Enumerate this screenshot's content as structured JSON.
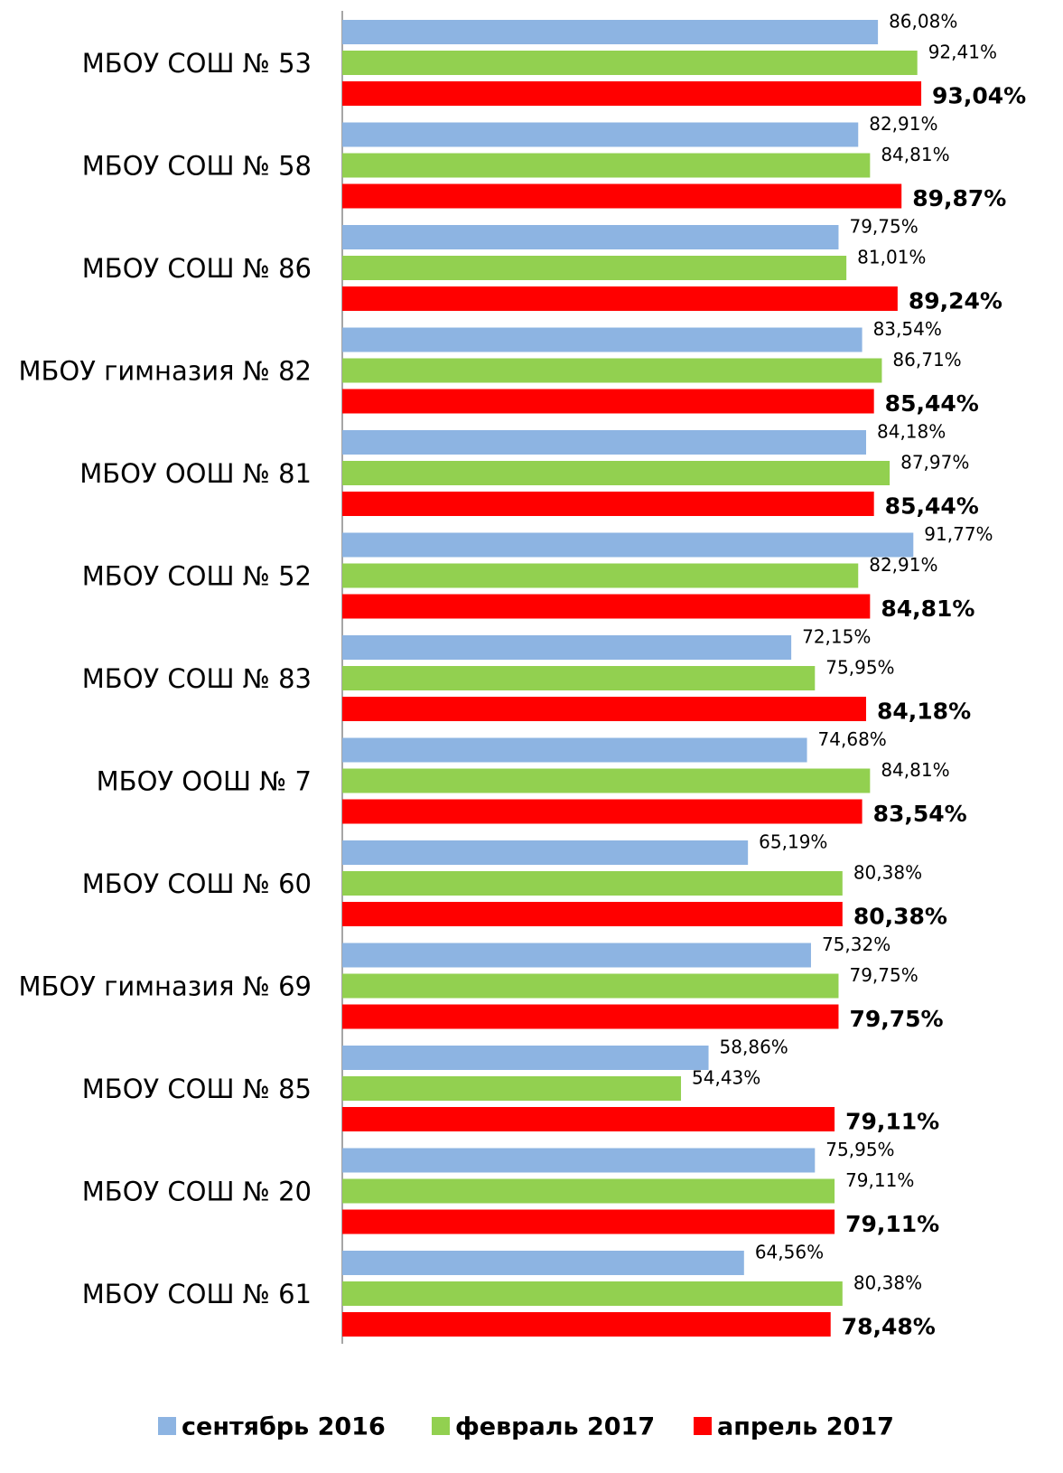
{
  "chart_data": {
    "type": "bar",
    "orientation": "horizontal",
    "categories": [
      "МБОУ СОШ  № 53",
      "МБОУ СОШ  № 58",
      "МБОУ СОШ  № 86",
      "МБОУ гимназия № 82",
      "МБОУ ООШ  № 81",
      "МБОУ СОШ  № 52",
      "МБОУ СОШ  № 83",
      "МБОУ ООШ  № 7",
      "МБОУ СОШ  № 60",
      "МБОУ гимназия № 69",
      "МБОУ СОШ  № 85",
      "МБОУ СОШ  № 20",
      "МБОУ СОШ  № 61"
    ],
    "series": [
      {
        "name": "сентябрь 2016",
        "color": "#8db4e2",
        "values": [
          86.08,
          82.91,
          79.75,
          83.54,
          84.18,
          91.77,
          72.15,
          74.68,
          65.19,
          75.32,
          58.86,
          75.95,
          64.56
        ],
        "value_labels": [
          "86,08%",
          "82,91%",
          "79,75%",
          "83,54%",
          "84,18%",
          "91,77%",
          "72,15%",
          "74,68%",
          "65,19%",
          "75,32%",
          "58,86%",
          "75,95%",
          "64,56%"
        ]
      },
      {
        "name": "февраль 2017",
        "color": "#92d050",
        "values": [
          92.41,
          84.81,
          81.01,
          86.71,
          87.97,
          82.91,
          75.95,
          84.81,
          80.38,
          79.75,
          54.43,
          79.11,
          80.38
        ],
        "value_labels": [
          "92,41%",
          "84,81%",
          "81,01%",
          "86,71%",
          "87,97%",
          "82,91%",
          "75,95%",
          "84,81%",
          "80,38%",
          "79,75%",
          "54,43%",
          "79,11%",
          "80,38%"
        ]
      },
      {
        "name": "апрель 2017",
        "color": "#ff0000",
        "values": [
          93.04,
          89.87,
          89.24,
          85.44,
          85.44,
          84.81,
          84.18,
          83.54,
          80.38,
          79.75,
          79.11,
          79.11,
          78.48
        ],
        "value_labels": [
          "93,04%",
          "89,87%",
          "89,24%",
          "85,44%",
          "85,44%",
          "84,81%",
          "84,18%",
          "83,54%",
          "80,38%",
          "79,75%",
          "79,11%",
          "79,11%",
          "78,48%"
        ]
      }
    ],
    "xlim": [
      0,
      100
    ],
    "legend": "bottom"
  }
}
